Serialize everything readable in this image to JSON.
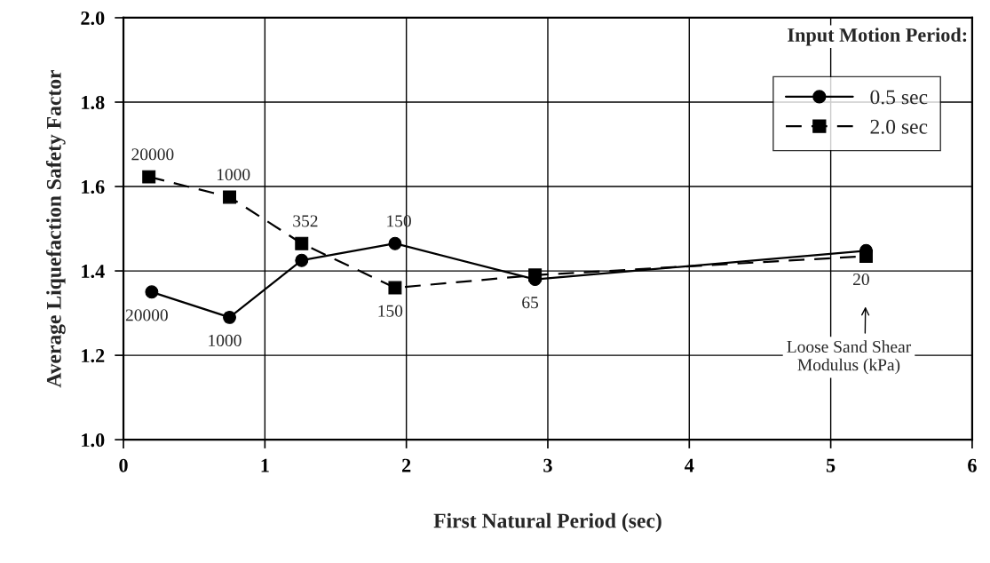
{
  "chart_data": {
    "type": "line",
    "xlabel": "First Natural Period (sec)",
    "ylabel": "Average Liquefaction Safety Factor",
    "legend_title": "Input Motion Period:",
    "legend": "top right",
    "grid": true,
    "xlim": [
      0,
      6
    ],
    "xticks": [
      0,
      1,
      2,
      3,
      4,
      5,
      6
    ],
    "ylim": [
      1.0,
      2.0
    ],
    "yticks": [
      {
        "value": 1.0,
        "label": "1.0"
      },
      1.2,
      1.4,
      1.6,
      1.8,
      {
        "value": 2.0,
        "label": "2.0"
      }
    ],
    "series": [
      {
        "name": "0.5 sec",
        "color": "#000000",
        "marker": "circle",
        "line_style": "solid",
        "x": [
          0.2,
          0.75,
          1.26,
          1.92,
          2.91,
          5.25
        ],
        "values": [
          1.35,
          1.29,
          1.425,
          1.465,
          1.38,
          1.448
        ]
      },
      {
        "name": "2.0 sec",
        "color": "#000000",
        "marker": "square",
        "line_style": "dashed",
        "x": [
          0.18,
          0.75,
          1.26,
          1.92,
          2.91,
          5.25
        ],
        "values": [
          1.623,
          1.575,
          1.465,
          1.36,
          1.39,
          1.435
        ]
      }
    ],
    "annotations": [
      {
        "text": "20000",
        "x": 0.18,
        "y": 1.623
      },
      {
        "text": "1000",
        "x": 0.75,
        "y": 1.575
      },
      {
        "text": "352",
        "x": 1.26,
        "y": 1.465
      },
      {
        "text": "150",
        "x": 1.92,
        "y": 1.465
      },
      {
        "text": "20000",
        "x": 0.2,
        "y": 1.35
      },
      {
        "text": "1000",
        "x": 0.75,
        "y": 1.29
      },
      {
        "text": "150",
        "x": 1.92,
        "y": 1.36
      },
      {
        "text": "65",
        "x": 2.91,
        "y": 1.38
      },
      {
        "text": "20",
        "x": 5.25,
        "y": 1.435
      },
      "Loose Sand Shear\nModulus (kPa)"
    ]
  }
}
